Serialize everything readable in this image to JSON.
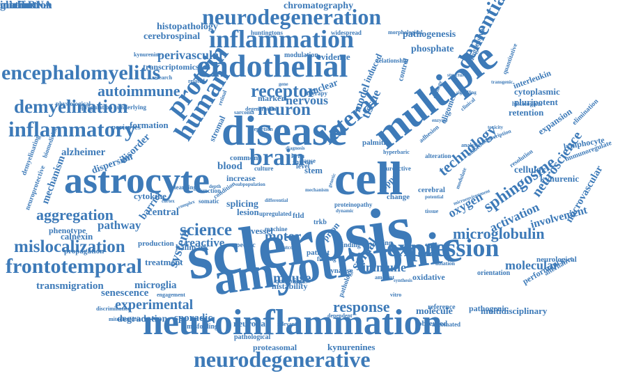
{
  "accent_color": "#3d7ab8",
  "words": [
    "sclerosis",
    "amyotrophic",
    "neuroinflammation",
    "astrocyte",
    "disease",
    "endothelial",
    "multiple",
    "cell",
    "neurodegeneration",
    "neurodegenerative",
    "inflammation",
    "expression",
    "frontotemporal",
    "encephalomyelitis",
    "inflammatory",
    "human",
    "protein",
    "brain",
    "lateral",
    "dementia",
    "mislocalization",
    "demyelination",
    "receptor",
    "neuron",
    "autoimmune",
    "microglobulin",
    "science",
    "aggregation",
    "response",
    "experimental",
    "sphingosine",
    "technology",
    "neuroscience",
    "mouse",
    "motor",
    "immune",
    "spinal",
    "molecular",
    "activation",
    "pathogenesis",
    "chromatography",
    "cerebrospinal",
    "perivascular",
    "histopathology",
    "phosphate",
    "nervous",
    "tissue",
    "model",
    "system",
    "microglia",
    "senescence",
    "transmigration",
    "degradation",
    "sporadic",
    "neuronal",
    "molecule",
    "observed",
    "multidisciplinary",
    "pathogenic",
    "proteasomal",
    "kynurenines",
    "pathological",
    "oxygen",
    "oxidative",
    "reactive",
    "lesion",
    "vessel",
    "central",
    "barrier",
    "pathway",
    "disorder",
    "dispersion",
    "alzheimer",
    "mechanism",
    "cytokine",
    "blood",
    "common",
    "increase",
    "splicing",
    "calnexin",
    "phenotype",
    "propagation",
    "hallmark",
    "treatment",
    "production",
    "formation",
    "pericytes",
    "nuclear",
    "interleukin",
    "cytoplasmic",
    "pluripotent",
    "retention",
    "expansion",
    "lymphocyte",
    "cellular",
    "kynurenic",
    "involvement",
    "microvascular",
    "performance",
    "neurological",
    "evidence",
    "modulation",
    "huntingtons",
    "widespread",
    "transcriptomics",
    "stromal",
    "stem",
    "intron",
    "copper",
    "prion",
    "specific",
    "instability",
    "synapse",
    "quinolinic",
    "ftld",
    "trkb",
    "patient",
    "immunoregulate",
    "elimination",
    "orientation",
    "alternative",
    "misfolding",
    "engagement",
    "discrimination",
    "sarcoma",
    "marker",
    "induced",
    "control",
    "oligomer",
    "progressive",
    "palmitic",
    "change",
    "cerebral",
    "physiological",
    "upregulation",
    "underlying",
    "neuroprotective",
    "demyelinating",
    "biomedicine",
    "function",
    "somatic",
    "relationship",
    "morphological",
    "histological",
    "quantitative",
    "reference",
    "automated",
    "learning",
    "condition",
    "culture",
    "adhesion",
    "neuroactive",
    "level",
    "cause",
    "machine",
    "binding",
    "finding",
    "ageing",
    "person",
    "relevant",
    "upregulated",
    "kyna",
    "cgas",
    "related",
    "proteinopathy",
    "vitro",
    "research",
    "kynurenine",
    "degeneration",
    "resolution",
    "pathology",
    "therapy",
    "alteration",
    "induction",
    "epithelial",
    "modulate",
    "potential",
    "microenvironment",
    "ambient",
    "dependent",
    "outcome",
    "analysis",
    "transcription",
    "transgenic",
    "tissue",
    "ablation",
    "entity",
    "clinical",
    "damage",
    "depletion",
    "retinal",
    "hyperbaric",
    "mitochondria",
    "cortex",
    "mechanism",
    "genetic",
    "dynamic",
    "subpopulation",
    "depth",
    "complex",
    "diagnosis",
    "synthesis",
    "enzyme",
    "toxicity",
    "structure",
    "signalling",
    "gene",
    "differential",
    "medium",
    "interaction",
    "glial",
    "microRNA",
    "motif"
  ]
}
